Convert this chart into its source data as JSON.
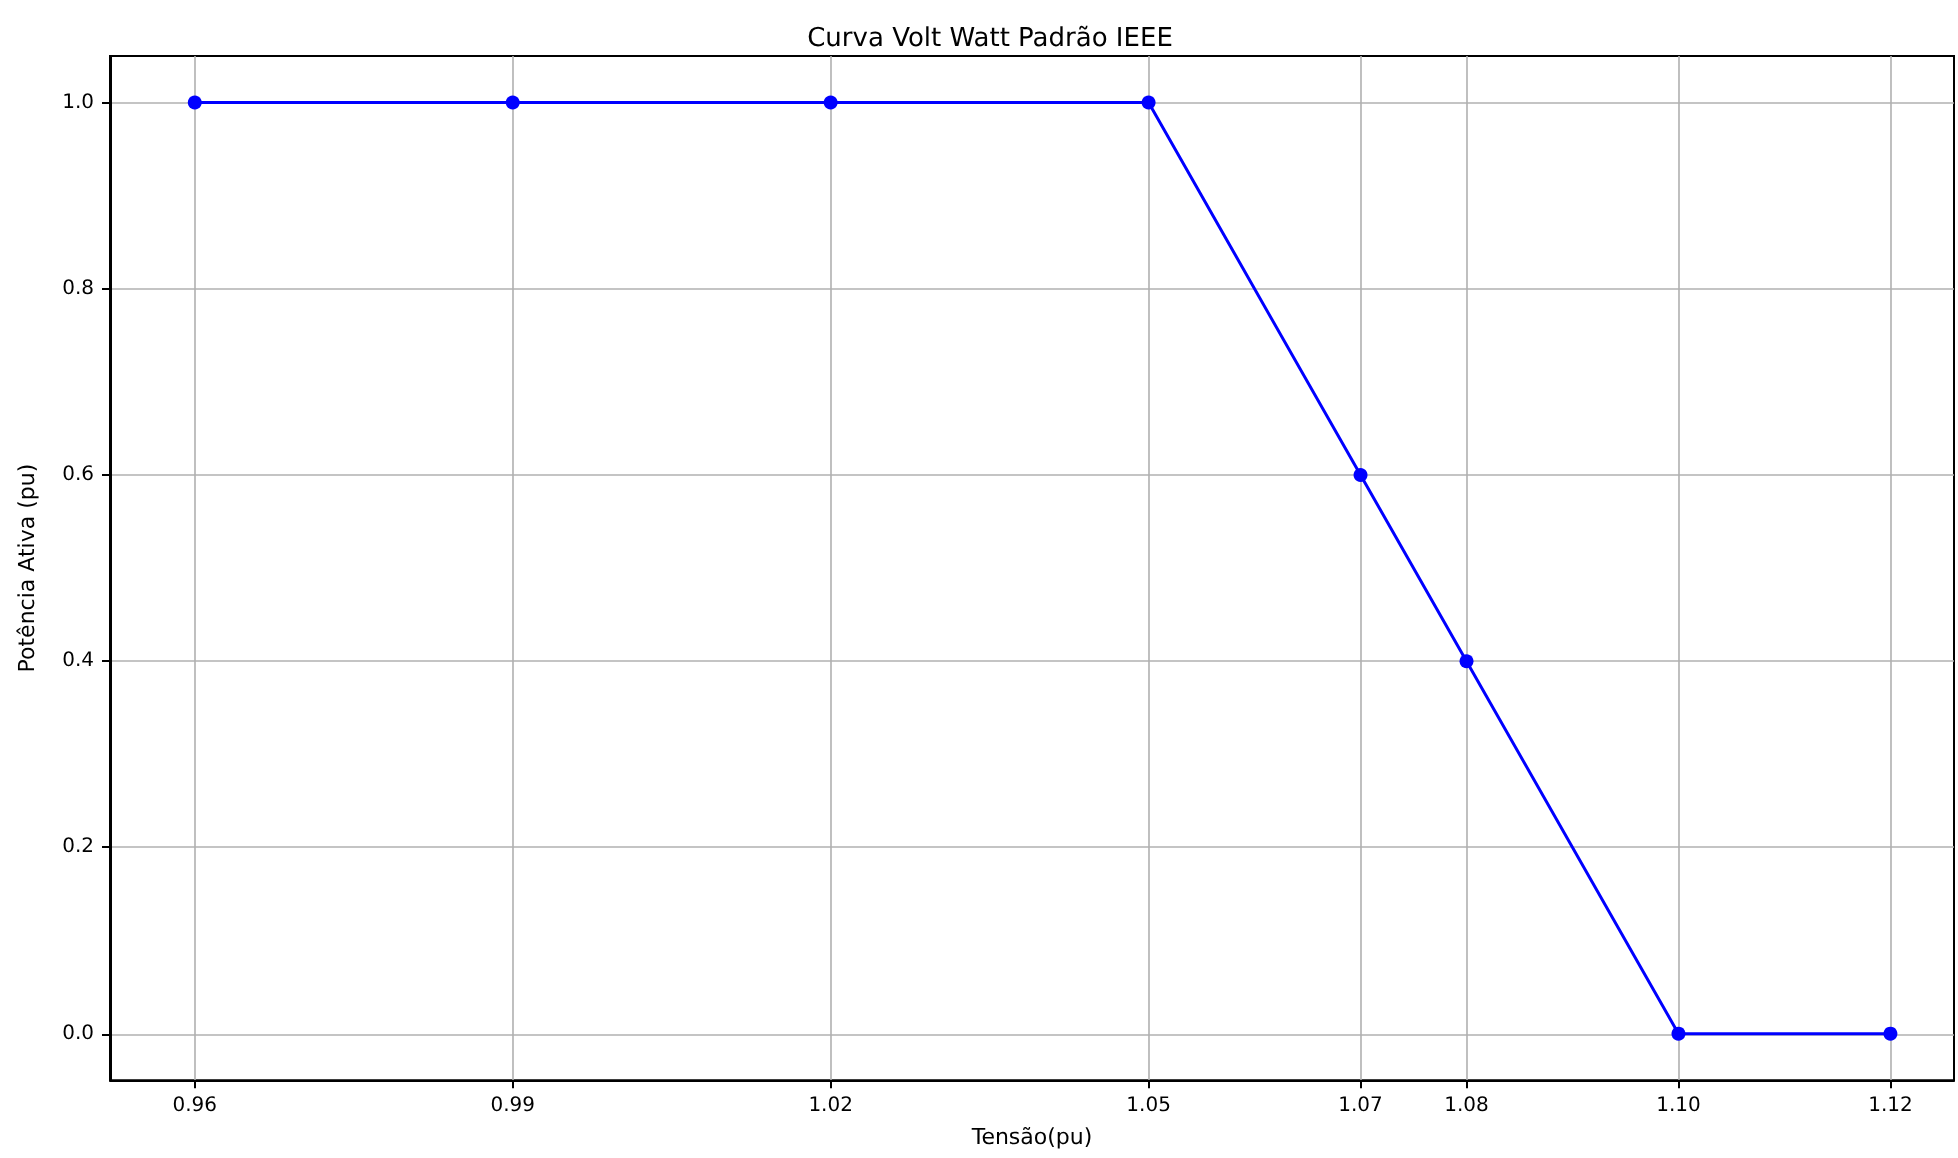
{
  "chart_data": {
    "type": "line",
    "title": "Curva Volt Watt Padrão IEEE",
    "xlabel": "Tensão(pu)",
    "ylabel": "Potência Ativa (pu)",
    "x": [
      0.96,
      0.99,
      1.02,
      1.05,
      1.07,
      1.08,
      1.1,
      1.12
    ],
    "series": [
      {
        "color": "#0000ff",
        "values": [
          1,
          1,
          1,
          1,
          0.6,
          0.4,
          0,
          0
        ]
      }
    ],
    "xlim": [
      0.952,
      1.126
    ],
    "xticks": [
      0.96,
      0.99,
      1.02,
      1.05,
      1.07,
      1.08,
      {
        "value": 1.1,
        "label": "1.10"
      },
      1.12
    ],
    "ylim": [
      -0.05,
      1.05
    ],
    "yticks": [
      {
        "value": 0,
        "label": "0.0"
      },
      0.2,
      0.4,
      0.6,
      0.8,
      {
        "value": 1,
        "label": "1.0"
      }
    ],
    "grid": true,
    "marker": "circle",
    "line_style": "solid"
  }
}
